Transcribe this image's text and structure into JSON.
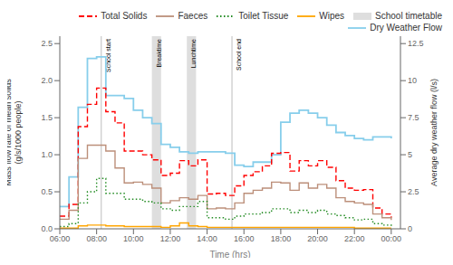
{
  "chart_data": {
    "type": "line",
    "xlabel": "Time (hrs)",
    "ylabel": "Mass flow rate of mean solids\n(g/s/1000 people)",
    "y2label": "Average dry weather flow (l/s)",
    "x": [
      6.0,
      6.5,
      7.0,
      7.5,
      8.0,
      8.5,
      9.0,
      9.5,
      10.0,
      10.5,
      11.0,
      11.5,
      12.0,
      12.5,
      13.0,
      13.5,
      14.0,
      14.5,
      15.0,
      15.5,
      16.0,
      16.5,
      17.0,
      17.5,
      18.0,
      18.5,
      19.0,
      19.5,
      20.0,
      20.5,
      21.0,
      21.5,
      22.0,
      22.5,
      23.0,
      23.5,
      24.0
    ],
    "xlim": [
      6,
      24.5
    ],
    "xticks": [
      {
        "value": 6,
        "label": "06:00"
      },
      {
        "value": 8,
        "label": "08:00"
      },
      {
        "value": 10,
        "label": "10:00"
      },
      {
        "value": 12,
        "label": "12:00"
      },
      {
        "value": 14,
        "label": "14:00"
      },
      {
        "value": 16,
        "label": "16:00"
      },
      {
        "value": 18,
        "label": "18:00"
      },
      {
        "value": 20,
        "label": "20:00"
      },
      {
        "value": 22,
        "label": "22:00"
      },
      {
        "value": 24,
        "label": "00:00"
      }
    ],
    "ylim": [
      0,
      2.6
    ],
    "yticks": [
      {
        "value": 0.0,
        "label": "0.0"
      },
      0.5,
      {
        "value": 1.0,
        "label": "1.0"
      },
      1.5,
      {
        "value": 2.0,
        "label": "2.0"
      },
      2.5
    ],
    "y2lim": [
      0,
      13
    ],
    "y2ticks": [
      0,
      2.5,
      5,
      7.5,
      10,
      12.5
    ],
    "grid": false,
    "legend": "upper right",
    "series": [
      {
        "name": "Total Solids",
        "type": "step",
        "color": "#FF0000",
        "line_style": "dashed",
        "values": [
          0.17,
          0.33,
          1.38,
          1.68,
          1.9,
          1.58,
          1.43,
          1.05,
          1.05,
          1.0,
          0.93,
          0.72,
          0.75,
          0.92,
          0.85,
          0.93,
          0.47,
          0.48,
          0.45,
          0.58,
          0.72,
          0.77,
          0.85,
          1.02,
          1.03,
          0.78,
          0.92,
          0.85,
          0.92,
          0.83,
          0.65,
          0.55,
          0.52,
          0.53,
          0.28,
          0.2,
          0.15
        ]
      },
      {
        "name": "Faeces",
        "type": "step",
        "color": "#BC8F7A",
        "line_style": "solid",
        "values": [
          0.13,
          0.25,
          0.95,
          1.13,
          1.13,
          1.05,
          0.82,
          0.62,
          0.63,
          0.6,
          0.55,
          0.35,
          0.38,
          0.42,
          0.4,
          0.45,
          0.27,
          0.28,
          0.27,
          0.35,
          0.48,
          0.52,
          0.55,
          0.63,
          0.62,
          0.52,
          0.62,
          0.55,
          0.6,
          0.55,
          0.42,
          0.37,
          0.35,
          0.33,
          0.2,
          0.15,
          0.12
        ]
      },
      {
        "name": "Toilet Tissue",
        "type": "step",
        "color": "#228B22",
        "line_style": "dotted",
        "values": [
          0.03,
          0.07,
          0.35,
          0.5,
          0.68,
          0.48,
          0.48,
          0.4,
          0.4,
          0.37,
          0.35,
          0.27,
          0.25,
          0.3,
          0.3,
          0.37,
          0.15,
          0.15,
          0.13,
          0.17,
          0.2,
          0.2,
          0.22,
          0.27,
          0.27,
          0.22,
          0.25,
          0.22,
          0.25,
          0.2,
          0.18,
          0.15,
          0.12,
          0.13,
          0.07,
          0.05,
          0.03
        ]
      },
      {
        "name": "Wipes",
        "type": "step",
        "color": "#FFA500",
        "line_style": "solid",
        "values": [
          0.01,
          0.01,
          0.04,
          0.05,
          0.05,
          0.04,
          0.04,
          0.03,
          0.03,
          0.03,
          0.03,
          0.02,
          0.04,
          0.08,
          0.04,
          0.03,
          0.02,
          0.02,
          0.02,
          0.02,
          0.02,
          0.02,
          0.02,
          0.02,
          0.02,
          0.02,
          0.02,
          0.02,
          0.02,
          0.02,
          0.02,
          0.02,
          0.01,
          0.01,
          0.01,
          0.01,
          0.01
        ]
      },
      {
        "name": "Dry Weather Flow",
        "type": "step",
        "axis": "y2",
        "color": "#87CEEB",
        "line_style": "solid",
        "values": [
          1.5,
          3.5,
          8.2,
          11.5,
          11.6,
          9.0,
          9.0,
          8.8,
          8.0,
          7.5,
          7.1,
          5.7,
          5.5,
          5.2,
          5.1,
          5.2,
          5.2,
          5.2,
          5.1,
          4.3,
          4.2,
          4.5,
          4.5,
          5.0,
          7.2,
          7.8,
          8.0,
          7.8,
          7.5,
          7.0,
          6.5,
          6.3,
          6.1,
          6.0,
          6.2,
          6.2,
          6.1
        ]
      }
    ],
    "annotations": {
      "name": "School timetable",
      "color": "#C8C8C8",
      "items": [
        {
          "text": "School start",
          "x": 8.25
        },
        {
          "text": "Breaktime",
          "x1": 11.0,
          "x2": 11.5
        },
        {
          "text": "Lunchtime",
          "x1": 12.9,
          "x2": 13.4
        },
        {
          "text": "School end",
          "x": 15.35
        }
      ]
    }
  }
}
